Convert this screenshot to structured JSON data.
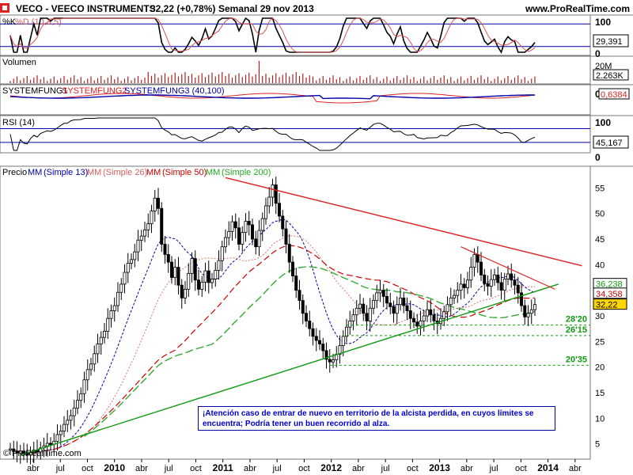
{
  "header": {
    "ticker": "VECO - VEECO INSTRUMENTS",
    "price_change": "32,22 (+0,78%)",
    "period_date": "Semanal  29 nov 2013",
    "site": "www.ProRealTime.com",
    "copyright": "© ProRealTime.com"
  },
  "panels": {
    "stoch": {
      "label_k": "%K",
      "label_d": "%D (10,3,5)",
      "value": "29,391",
      "top": "100",
      "bottom": "0"
    },
    "volume": {
      "label": "Volumen",
      "top": "20M",
      "value": "2.263K"
    },
    "system": {
      "labels": [
        "SYSTEMFUNG1",
        "SYSTEMFUNG2",
        "SYSTEMFUNG3 (40,100)"
      ],
      "value": "0,6384",
      "top": "0"
    },
    "rsi": {
      "label": "RSI (14)",
      "value": "45,167",
      "top": "100",
      "bottom": "0"
    }
  },
  "price_legend": [
    {
      "text": "Precio",
      "color": "#000000"
    },
    {
      "text": "MM",
      "color": "#0000aa"
    },
    {
      "text": "(Simple 13)",
      "color": "#0000aa"
    },
    {
      "text": "MM",
      "color": "#d46060"
    },
    {
      "text": "(Simple 26)",
      "color": "#d46060"
    },
    {
      "text": "MM",
      "color": "#cc0000"
    },
    {
      "text": "(Simple 50)",
      "color": "#cc0000"
    },
    {
      "text": "MM",
      "color": "#22aa22"
    },
    {
      "text": "(Simple 200)",
      "color": "#22aa22"
    }
  ],
  "note": "¡Atención caso de entrar de nuevo en territorio de la alcista perdida, en cuyos límites se encuentra; Podría tener un buen recorrido al alza.",
  "colors": {
    "up": "#ffffff",
    "down": "#000000",
    "support": "#119911",
    "resistance": "#dd2222",
    "ma13": "#0000aa",
    "ma26": "#e07070",
    "ma50": "#cc0000",
    "ma200": "#33aa33"
  },
  "chart_data": {
    "type": "candlestick",
    "y_ticks": [
      5,
      10,
      15,
      20,
      25,
      30,
      35,
      40,
      45,
      50,
      55
    ],
    "ylim": [
      2,
      58
    ],
    "x_ticks": [
      "abr",
      "jul",
      "oct",
      "2010",
      "abr",
      "jul",
      "oct",
      "2011",
      "abr",
      "jul",
      "oct",
      "2012",
      "abr",
      "jul",
      "oct",
      "2013",
      "abr",
      "jul",
      "oct",
      "2014",
      "abr"
    ],
    "x_ticks_bold": [
      "2010",
      "2011",
      "2012",
      "2013",
      "2014"
    ],
    "price_close": [
      4.0,
      3.5,
      3.2,
      3.6,
      3.0,
      2.8,
      3.3,
      3.8,
      3.4,
      4.2,
      4.6,
      5.1,
      4.9,
      5.5,
      6.8,
      7.5,
      8.8,
      9.6,
      10.5,
      12.0,
      13.5,
      14.8,
      17.5,
      19.5,
      20.6,
      22.6,
      24.5,
      25.8,
      27.0,
      29.5,
      31.0,
      32.0,
      34.6,
      36.2,
      38.5,
      40.3,
      41.0,
      42.5,
      44.8,
      45.6,
      46.8,
      48.0,
      50.5,
      53.0,
      51.0,
      44.0,
      42.0,
      40.5,
      37.5,
      39.5,
      36.0,
      33.5,
      35.2,
      38.3,
      41.2,
      37.0,
      35.2,
      36.6,
      38.8,
      36.5,
      37.2,
      38.9,
      40.8,
      43.5,
      45.3,
      46.5,
      48.4,
      47.2,
      44.0,
      46.3,
      48.5,
      47.8,
      45.0,
      43.5,
      46.7,
      49.0,
      51.5,
      53.2,
      55.6,
      52.0,
      49.5,
      47.0,
      44.0,
      40.5,
      37.8,
      35.0,
      33.0,
      30.5,
      29.0,
      27.5,
      26.0,
      25.2,
      24.5,
      23.2,
      21.5,
      21.0,
      21.4,
      22.5,
      24.2,
      26.0,
      27.8,
      29.0,
      30.2,
      31.5,
      32.3,
      30.5,
      29.0,
      31.5,
      33.0,
      34.5,
      35.0,
      33.8,
      32.5,
      31.8,
      30.5,
      32.2,
      33.5,
      32.0,
      31.0,
      29.5,
      28.8,
      28.0,
      29.0,
      30.0,
      31.2,
      30.2,
      29.0,
      28.5,
      29.5,
      30.8,
      32.2,
      33.5,
      34.0,
      35.0,
      36.2,
      35.5,
      37.0,
      39.5,
      42.0,
      40.5,
      38.0,
      36.3,
      35.8,
      37.1,
      38.0,
      36.5,
      35.0,
      37.2,
      38.2,
      37.0,
      36.0,
      34.5,
      32.0,
      29.8,
      30.5,
      31.2,
      32.22
    ],
    "series": [
      {
        "name": "MM (Simple 13)"
      },
      {
        "name": "MM (Simple 26)"
      },
      {
        "name": "MM (Simple 50)"
      },
      {
        "name": "MM (Simple 200)"
      }
    ],
    "right_labels": [
      "36,238",
      "34,358",
      "32,22"
    ],
    "support_labels": [
      "28'20",
      "26'15",
      "20'35"
    ],
    "support_levels": [
      28.2,
      26.15,
      20.35
    ],
    "trendline_support": {
      "from": [
        3,
        2.8
      ],
      "to": [
        163,
        36.2
      ]
    },
    "trendline_resistance": {
      "from": [
        64,
        57.0
      ],
      "to": [
        170,
        39.8
      ]
    },
    "trendline_resistance_short": {
      "from": [
        134,
        43.5
      ],
      "to": [
        162,
        35.2
      ]
    }
  }
}
